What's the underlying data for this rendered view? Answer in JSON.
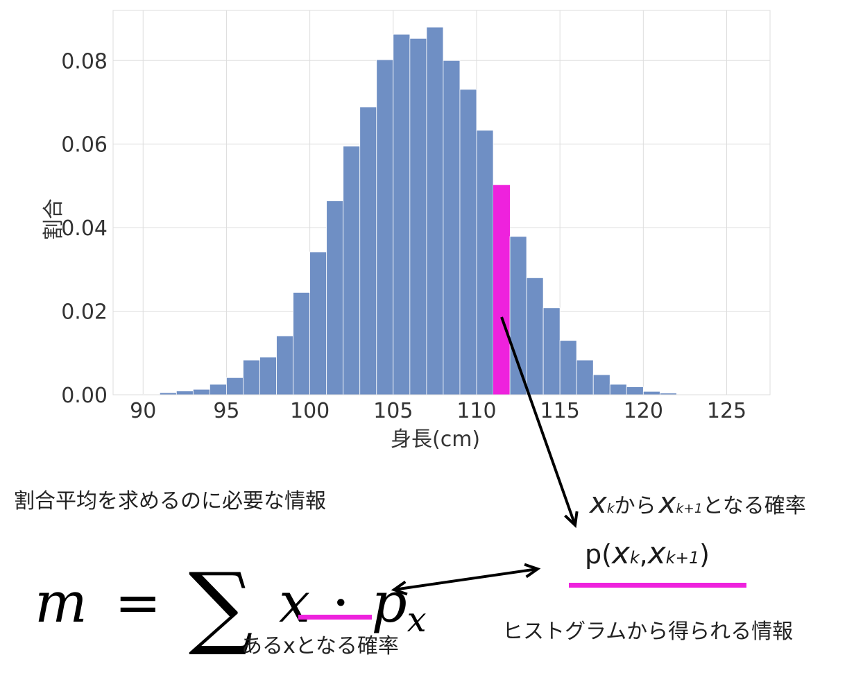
{
  "chart_data": {
    "type": "bar",
    "xlabel": "身長(cm)",
    "ylabel": "割合",
    "xlim": [
      88.2,
      127.6
    ],
    "ylim": [
      0,
      0.092
    ],
    "xticks": [
      "90",
      "95",
      "100",
      "105",
      "110",
      "115",
      "120",
      "125"
    ],
    "yticks": [
      "0.00",
      "0.02",
      "0.04",
      "0.06",
      "0.08"
    ],
    "grid": true,
    "bin_start": 90,
    "bin_width": 1,
    "values": [
      0.0001,
      0.0005,
      0.0009,
      0.0013,
      0.0025,
      0.0041,
      0.0083,
      0.009,
      0.0141,
      0.0245,
      0.0342,
      0.0464,
      0.0595,
      0.0689,
      0.0802,
      0.0863,
      0.0853,
      0.088,
      0.08,
      0.0731,
      0.0633,
      0.0502,
      0.0379,
      0.028,
      0.0208,
      0.013,
      0.0083,
      0.0048,
      0.0025,
      0.0019,
      0.0008,
      0.0004,
      0.0001
    ],
    "highlight_bin_index": 21,
    "colors": {
      "bar": "#6f8fc4",
      "highlight": "#ee22dd",
      "grid": "#dddddd"
    }
  },
  "annotations": {
    "section_label": "割合平均を求めるのに必要な情報",
    "formula": {
      "m": "m",
      "equals": "=",
      "sum": "∑",
      "x": "x",
      "dot": "·",
      "p": "p",
      "p_sub": "x"
    },
    "formula_caption": "あるxとなる確率",
    "prob_label": {
      "x_k": "x",
      "k": "k",
      "mid": "から",
      "x_k1": "x",
      "k1": "k+1",
      "tail": "となる確率"
    },
    "prob_expr": {
      "p_open": "p(",
      "x_k": "x",
      "k": "k",
      "comma": ",",
      "x_k1": "x",
      "k1": "k+1",
      "close": ")"
    },
    "histogram_caption": "ヒストグラムから得られる情報",
    "colors": {
      "underline": "#ee22dd",
      "arrow": "#000000"
    }
  }
}
